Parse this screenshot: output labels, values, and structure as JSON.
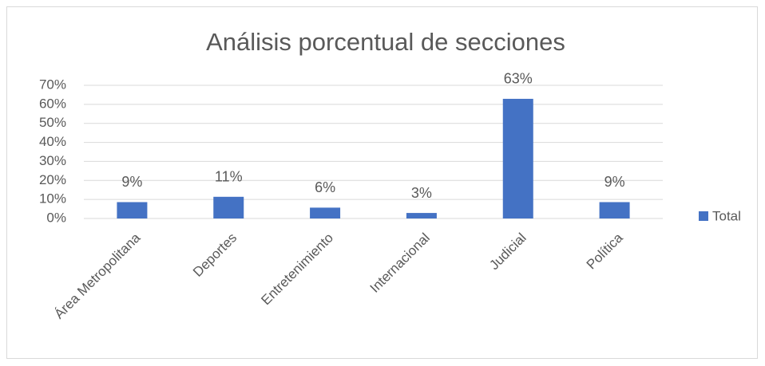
{
  "chart_data": {
    "type": "bar",
    "title": "Análisis porcentual de secciones",
    "categories": [
      "Área Metropolitana",
      "Deportes",
      "Entretenimiento",
      "Internacional",
      "Judicial",
      "Política"
    ],
    "series": [
      {
        "name": "Total",
        "color": "#4472c4",
        "values": [
          8.6,
          11.4,
          5.7,
          2.9,
          62.9,
          8.6
        ],
        "value_labels": [
          "9%",
          "11%",
          "6%",
          "3%",
          "63%",
          "9%"
        ]
      }
    ],
    "ylim": [
      0,
      70
    ],
    "yticks": [
      {
        "value": 0,
        "label": "0%"
      },
      {
        "value": 10,
        "label": "10%"
      },
      {
        "value": 20,
        "label": "20%"
      },
      {
        "value": 30,
        "label": "30%"
      },
      {
        "value": 40,
        "label": "40%"
      },
      {
        "value": 50,
        "label": "50%"
      },
      {
        "value": 60,
        "label": "60%"
      },
      {
        "value": 70,
        "label": "70%"
      }
    ],
    "grid": true,
    "legend": "right"
  }
}
